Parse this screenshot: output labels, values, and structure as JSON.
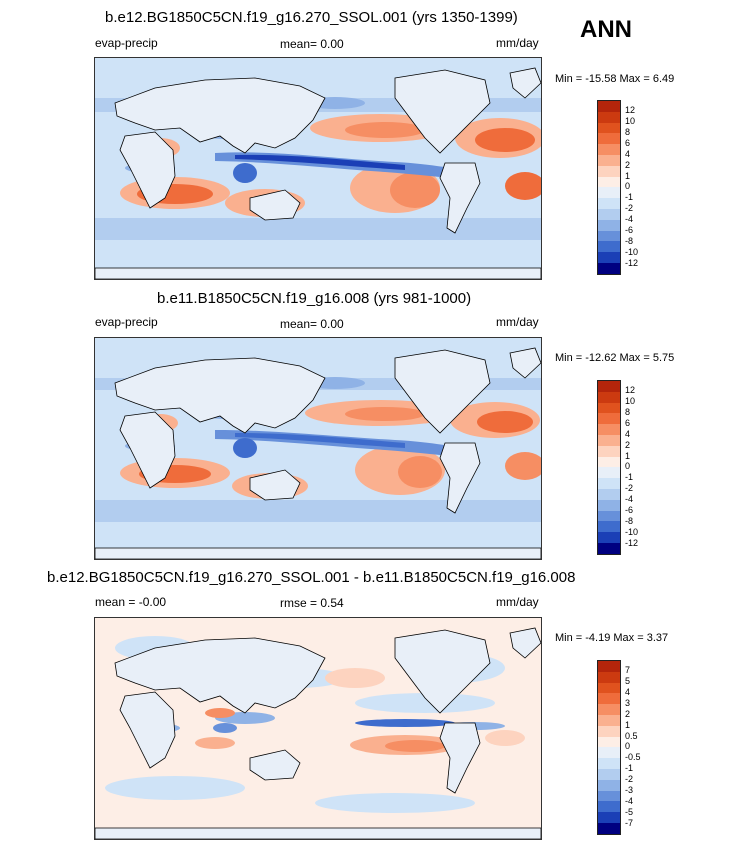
{
  "ann_label": "ANN",
  "panels": [
    {
      "title": "b.e12.BG1850C5CN.f19_g16.270_SSOL.001 (yrs 1350-1399)",
      "left_label": "evap-precip",
      "center_label": "mean=  0.00",
      "units": "mm/day",
      "minmax": "Min = -15.58 Max =   6.49",
      "colorbar_labels": [
        "12",
        "10",
        "8",
        "6",
        "4",
        "2",
        "1",
        "0",
        "-1",
        "-2",
        "-4",
        "-6",
        "-8",
        "-10",
        "-12"
      ]
    },
    {
      "title": "b.e11.B1850C5CN.f19_g16.008 (yrs 981-1000)",
      "left_label": "evap-precip",
      "center_label": "mean=  0.00",
      "units": "mm/day",
      "minmax": "Min = -12.62 Max =   5.75",
      "colorbar_labels": [
        "12",
        "10",
        "8",
        "6",
        "4",
        "2",
        "1",
        "0",
        "-1",
        "-2",
        "-4",
        "-6",
        "-8",
        "-10",
        "-12"
      ]
    },
    {
      "title": "b.e12.BG1850C5CN.f19_g16.270_SSOL.001 - b.e11.B1850C5CN.f19_g16.008",
      "left_label": "mean =  -0.00",
      "center_label": "rmse =   0.54",
      "units": "mm/day",
      "minmax": "Min =  -4.19 Max =   3.37",
      "colorbar_labels": [
        "7",
        "5",
        "4",
        "3",
        "2",
        "1",
        "0.5",
        "0",
        "-0.5",
        "-1",
        "-2",
        "-3",
        "-4",
        "-5",
        "-7"
      ]
    }
  ],
  "colors": {
    "scale": [
      "#b3250b",
      "#cc3a10",
      "#e0521e",
      "#ef6c3b",
      "#f68e63",
      "#fab08f",
      "#fdd3bf",
      "#fdeee6",
      "#e8eff8",
      "#cfe3f7",
      "#b2cdef",
      "#8fb2e6",
      "#6790da",
      "#3e6ccd",
      "#1b3fb6",
      "#04179a",
      "#000080"
    ],
    "land": "#ffffff",
    "coast": "#000000"
  }
}
